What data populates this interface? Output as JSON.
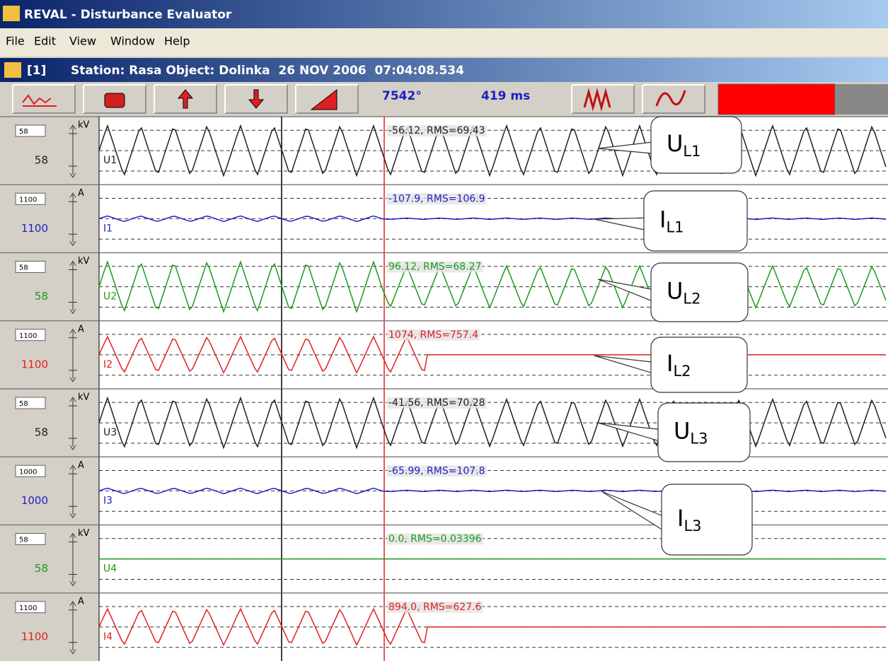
{
  "window": {
    "title": "REVAL - Disturbance Evaluator"
  },
  "menu": [
    "File",
    "Edit",
    "View",
    "Window",
    "Help"
  ],
  "document": {
    "index": "[1]",
    "caption": "Station: Rasa Object: Dolinka  26 NOV 2006  07:04:08.534"
  },
  "toolbar": {
    "angle": "7542°",
    "time": "419 ms"
  },
  "channels": [
    {
      "box": "58",
      "scale": "58",
      "unit": "kV",
      "name": "U1",
      "readout": "-56.12, RMS=69.43",
      "color": "#202020"
    },
    {
      "box": "1100",
      "scale": "1100",
      "unit": "A",
      "name": "I1",
      "readout": "-107.9, RMS=106.9",
      "color": "#2020c0"
    },
    {
      "box": "58",
      "scale": "58",
      "unit": "kV",
      "name": "U2",
      "readout": "96.12, RMS=68.27",
      "color": "#1a9a1a"
    },
    {
      "box": "1100",
      "scale": "1100",
      "unit": "A",
      "name": "I2",
      "readout": "1074, RMS=757.4",
      "color": "#e02020"
    },
    {
      "box": "58",
      "scale": "58",
      "unit": "kV",
      "name": "U3",
      "readout": "-41.56, RMS=70.28",
      "color": "#202020"
    },
    {
      "box": "1000",
      "scale": "1000",
      "unit": "A",
      "name": "I3",
      "readout": "-65.99, RMS=107.8",
      "color": "#2020c0"
    },
    {
      "box": "58",
      "scale": "58",
      "unit": "kV",
      "name": "U4",
      "readout": "0.0, RMS=0.03396",
      "color": "#1a9a1a"
    },
    {
      "box": "1100",
      "scale": "1100",
      "unit": "A",
      "name": "I4",
      "readout": "894.0, RMS=627.6",
      "color": "#e02020"
    }
  ],
  "callouts": [
    {
      "letter": "U",
      "sub": "L1"
    },
    {
      "letter": "I",
      "sub": "L1"
    },
    {
      "letter": "U",
      "sub": "L2"
    },
    {
      "letter": "I",
      "sub": "L2"
    },
    {
      "letter": "U",
      "sub": "L3"
    },
    {
      "letter": "I",
      "sub": "L3"
    }
  ]
}
